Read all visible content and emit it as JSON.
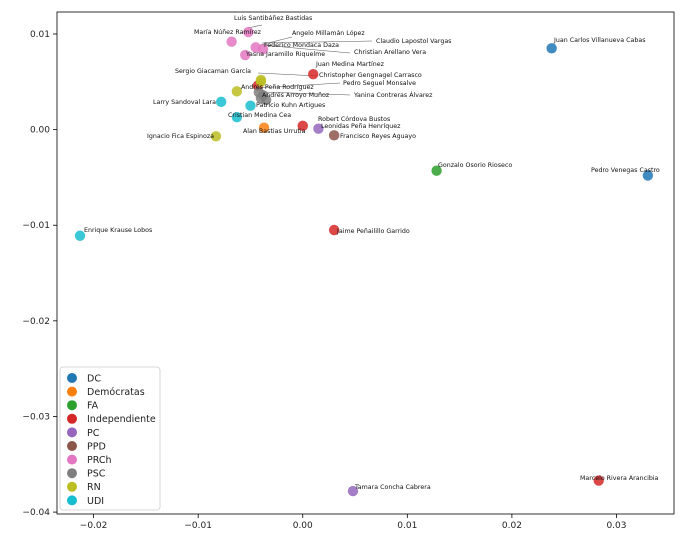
{
  "chart_data": {
    "type": "scatter",
    "title": "",
    "xlabel": "",
    "ylabel": "",
    "xlim": [
      -0.0235,
      0.0355
    ],
    "ylim": [
      -0.0402,
      0.0123
    ],
    "x_ticks": [
      -0.02,
      -0.01,
      0.0,
      0.01,
      0.02,
      0.03
    ],
    "x_tick_labels": [
      "−0.02",
      "−0.01",
      "0.00",
      "0.01",
      "0.02",
      "0.03"
    ],
    "y_ticks": [
      0.01,
      0.0,
      -0.01,
      -0.02,
      -0.03,
      -0.04
    ],
    "y_tick_labels": [
      "0.01",
      "0.00",
      "−0.01",
      "−0.02",
      "−0.03",
      "−0.04"
    ],
    "grid": false,
    "legend_position": "bottom-left",
    "series": [
      {
        "name": "DC",
        "color": "#1f77b4",
        "points": [
          {
            "label": "Juan Carlos Villanueva Cabas",
            "x": 0.0238,
            "y": 0.0085
          },
          {
            "label": "Pedro Venegas Castro",
            "x": 0.033,
            "y": -0.0048
          }
        ]
      },
      {
        "name": "Demócratas",
        "color": "#ff7f0e",
        "points": [
          {
            "label": "Alan Bastias Urrutia",
            "x": -0.0037,
            "y": 0.0002
          }
        ]
      },
      {
        "name": "FA",
        "color": "#2ca02c",
        "points": [
          {
            "label": "Gonzalo Osorio Rioseco",
            "x": 0.0128,
            "y": -0.0043
          }
        ]
      },
      {
        "name": "Independiente",
        "color": "#d62728",
        "points": [
          {
            "label": "Juan Medina Martínez",
            "x": 0.001,
            "y": 0.0058
          },
          {
            "label": "Robert Córdova Bustos",
            "x": 0.0,
            "y": 0.0004
          },
          {
            "label": "Jaime Peñailillo Garrido",
            "x": 0.003,
            "y": -0.0105
          },
          {
            "label": "Marcelo Rivera Arancibia",
            "x": 0.0283,
            "y": -0.0367
          },
          {
            "label": "Andrés Peña Rodríguez",
            "x": -0.0043,
            "y": 0.0046
          }
        ]
      },
      {
        "name": "PC",
        "color": "#9467bd",
        "points": [
          {
            "label": "Leonidas Peña Henríquez",
            "x": 0.0015,
            "y": 0.0001
          },
          {
            "label": "Tamara Concha Cabrera",
            "x": 0.0048,
            "y": -0.0378
          }
        ]
      },
      {
        "name": "PPD",
        "color": "#8c564b",
        "points": [
          {
            "label": "Francisco Reyes Aguayo",
            "x": 0.003,
            "y": -0.0006
          }
        ]
      },
      {
        "name": "PRCh",
        "color": "#e377c2",
        "points": [
          {
            "label": "Luis Santibáñez Bastidas",
            "x": -0.0052,
            "y": 0.0102
          },
          {
            "label": "María Núñez Ramírez",
            "x": -0.0068,
            "y": 0.0092
          },
          {
            "label": "Angelo Millamán López",
            "x": -0.0045,
            "y": 0.0086
          },
          {
            "label": "Federico Mondaca Daza",
            "x": -0.0038,
            "y": 0.0084
          },
          {
            "label": "Yasna Jaramillo Riquelme",
            "x": -0.0055,
            "y": 0.0078
          }
        ]
      },
      {
        "name": "PSC",
        "color": "#7f7f7f",
        "points": [
          {
            "label": "Andrés Arroyo Muñoz",
            "x": -0.004,
            "y": 0.0033
          },
          {
            "label": "Pedro Seguel Monsalve",
            "x": -0.0038,
            "y": 0.0036
          },
          {
            "label": "Yanina Contreras Álvarez",
            "x": -0.0035,
            "y": 0.0031
          },
          {
            "label": "Christopher Gengnagel Carrasco",
            "x": -0.0042,
            "y": 0.0039
          }
        ]
      },
      {
        "name": "RN",
        "color": "#bcbd22",
        "points": [
          {
            "label": "Sergio Giacaman García",
            "x": -0.0063,
            "y": 0.004
          },
          {
            "label": "Ignacio Fica Espinoza",
            "x": -0.0083,
            "y": -0.0007
          },
          {
            "label": "Claudio Lapostol Vargas",
            "x": -0.004,
            "y": 0.0052
          },
          {
            "label": "Christian Arellano Vera",
            "x": -0.004,
            "y": 0.005
          }
        ]
      },
      {
        "name": "UDI",
        "color": "#17becf",
        "points": [
          {
            "label": "Larry Sandoval Lara",
            "x": -0.0078,
            "y": 0.0029
          },
          {
            "label": "Patricio Kuhn Artigues",
            "x": -0.005,
            "y": 0.0025
          },
          {
            "label": "Cristian Medina Cea",
            "x": -0.0063,
            "y": 0.0013
          },
          {
            "label": "Enrique Krause Lobos",
            "x": -0.0213,
            "y": -0.0111
          }
        ]
      }
    ]
  }
}
